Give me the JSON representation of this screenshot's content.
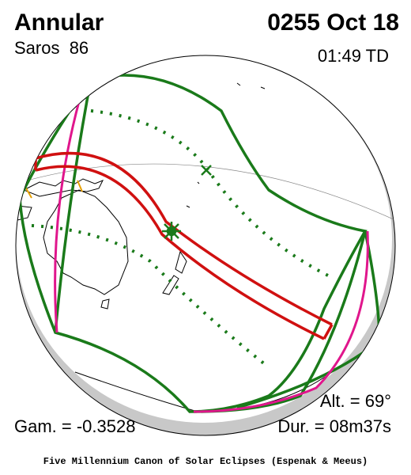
{
  "header": {
    "title": "Annular",
    "saros": "Saros  86",
    "date": "0255 Oct 18",
    "time": "01:49 TD"
  },
  "footer": {
    "altitude": "Alt. = 69°",
    "gamma": "Gam. = -0.3528",
    "duration": "Dur. = 08m37s",
    "credit": "Five Millennium Canon of Solar Eclipses (Espenak & Meeus)"
  }
}
